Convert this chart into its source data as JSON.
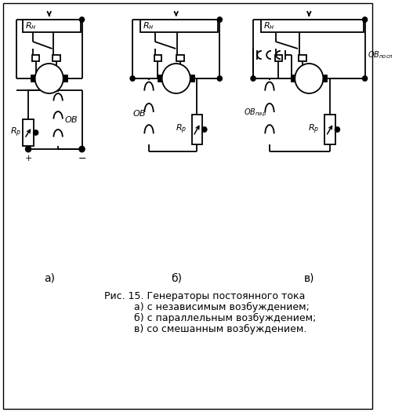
{
  "title": "Рис. 15. Генераторы постоянного тока",
  "caption_lines": [
    "а) с независимым возбуждением;",
    "б) с параллельным возбуждением;",
    "в) со смешанным возбуждением."
  ],
  "label_a": "а)",
  "label_b": "б)",
  "label_c": "в)",
  "label_Rn": "$R_н$",
  "label_Rp": "$R_р$",
  "label_OB": "$OB$",
  "label_OB_par": "$OB_{пар}$",
  "label_OB_seq": "$OB_{посл}$",
  "bg_color": "#ffffff",
  "line_color": "#000000",
  "lw": 1.3,
  "font_size": 9,
  "fig_width": 5.04,
  "fig_height": 5.25,
  "dpi": 100
}
